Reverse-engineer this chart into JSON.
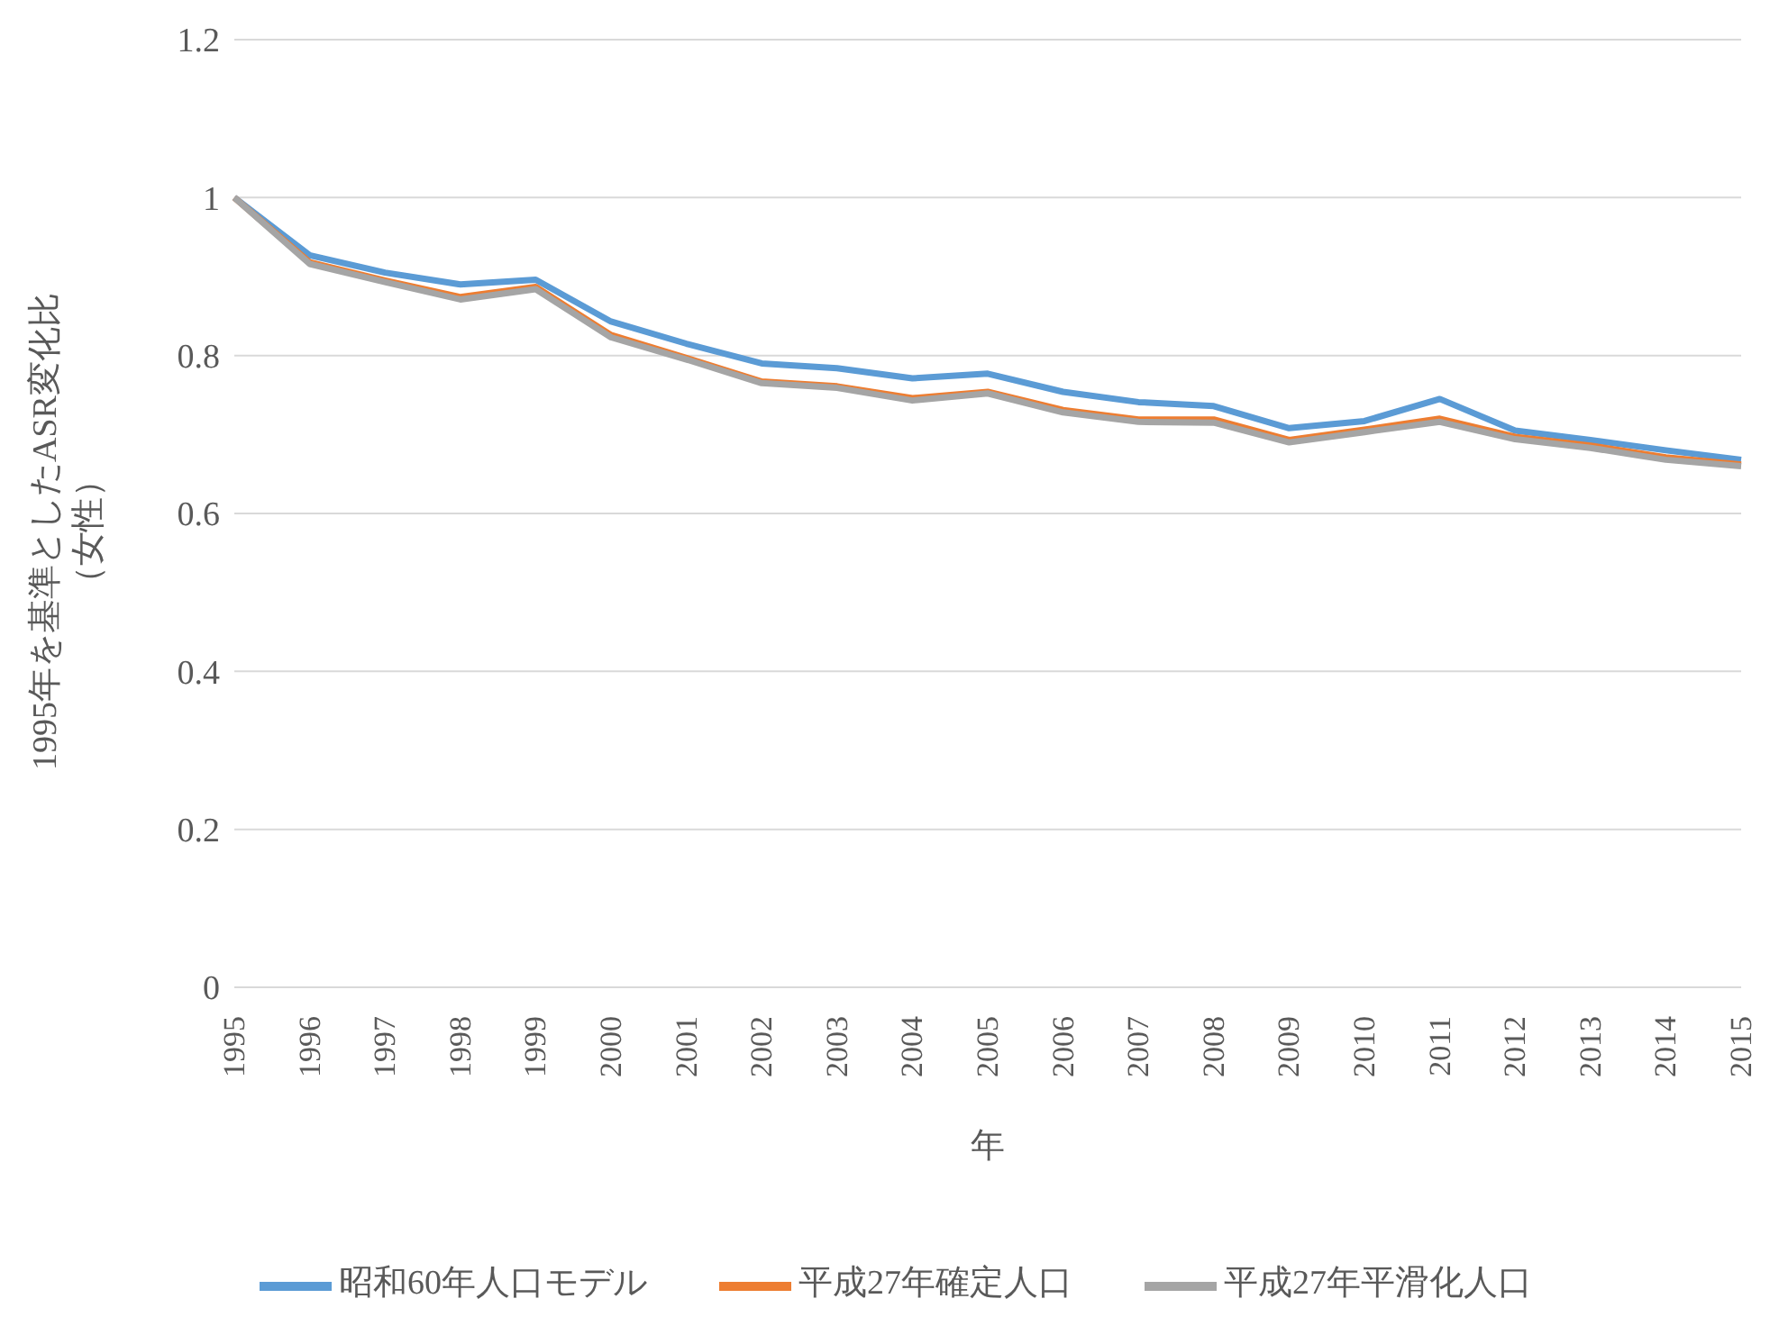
{
  "chart_data": {
    "type": "line",
    "xlabel": "年",
    "ylabel": "1995年を基準としたASR変化比（女性）",
    "categories": [
      "1995",
      "1996",
      "1997",
      "1998",
      "1999",
      "2000",
      "2001",
      "2002",
      "2003",
      "2004",
      "2005",
      "2006",
      "2007",
      "2008",
      "2009",
      "2010",
      "2011",
      "2012",
      "2013",
      "2014",
      "2015"
    ],
    "series": [
      {
        "name": "昭和60年人口モデル",
        "color": "#5b9bd5",
        "values": [
          1.0,
          0.927,
          0.905,
          0.89,
          0.896,
          0.843,
          0.815,
          0.79,
          0.784,
          0.771,
          0.777,
          0.754,
          0.741,
          0.736,
          0.708,
          0.717,
          0.745,
          0.705,
          0.693,
          0.68,
          0.668
        ]
      },
      {
        "name": "平成27年確定人口",
        "color": "#ed7d31",
        "values": [
          1.0,
          0.918,
          0.895,
          0.874,
          0.887,
          0.826,
          0.797,
          0.767,
          0.761,
          0.746,
          0.754,
          0.731,
          0.719,
          0.719,
          0.693,
          0.706,
          0.72,
          0.697,
          0.686,
          0.671,
          0.662
        ]
      },
      {
        "name": "平成27年平滑化人口",
        "color": "#a5a5a5",
        "values": [
          1.0,
          0.916,
          0.893,
          0.871,
          0.884,
          0.823,
          0.795,
          0.765,
          0.759,
          0.743,
          0.752,
          0.728,
          0.716,
          0.715,
          0.69,
          0.703,
          0.716,
          0.694,
          0.683,
          0.668,
          0.66
        ]
      }
    ],
    "ylim": [
      0,
      1.2
    ],
    "yticks": [
      0,
      0.2,
      0.4,
      0.6,
      0.8,
      1,
      1.2
    ],
    "grid": "y",
    "legend": "bottom",
    "marker": "none",
    "line_style": "solid"
  }
}
